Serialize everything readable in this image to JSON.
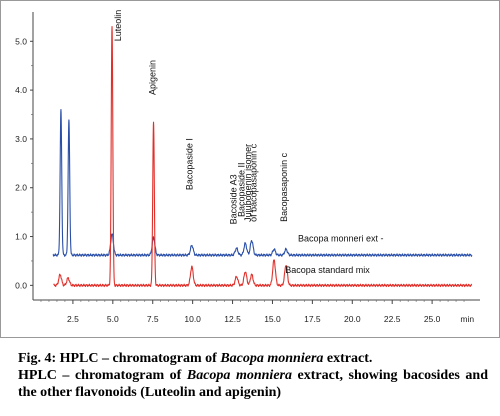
{
  "chart_data": {
    "type": "line",
    "x_unit": "min",
    "xlim": [
      0,
      28
    ],
    "ylim": [
      -0.3,
      5.6
    ],
    "x_ticks": [
      "2.5",
      "5.0",
      "7.5",
      "10.0",
      "12.5",
      "15.0",
      "17.5",
      "20.0",
      "22.5",
      "25.0",
      "min"
    ],
    "y_ticks": [
      "0.0",
      "1.0",
      "2.0",
      "3.0",
      "4.0",
      "5.0"
    ],
    "grid": false,
    "series": [
      {
        "name": "Bacopa monneri ext -",
        "color": "#2a4fa8",
        "baseline": 0.62,
        "peaks": [
          {
            "x": 1.75,
            "y": 3.58
          },
          {
            "x": 2.25,
            "y": 3.38
          },
          {
            "x": 4.95,
            "y": 1.05
          },
          {
            "x": 7.55,
            "y": 0.98
          },
          {
            "x": 9.95,
            "y": 0.82
          },
          {
            "x": 12.75,
            "y": 0.76
          },
          {
            "x": 13.3,
            "y": 0.86
          },
          {
            "x": 13.7,
            "y": 0.92
          },
          {
            "x": 15.1,
            "y": 0.74
          },
          {
            "x": 15.85,
            "y": 0.74
          }
        ]
      },
      {
        "name": "Bacopa standard mix",
        "color": "#e0302b",
        "baseline": 0.0,
        "peaks": [
          {
            "x": 1.7,
            "y": 0.22
          },
          {
            "x": 2.2,
            "y": 0.15
          },
          {
            "x": 4.95,
            "y": 5.32
          },
          {
            "x": 7.55,
            "y": 3.35
          },
          {
            "x": 9.95,
            "y": 0.38
          },
          {
            "x": 12.75,
            "y": 0.18
          },
          {
            "x": 13.3,
            "y": 0.28
          },
          {
            "x": 13.7,
            "y": 0.22
          },
          {
            "x": 15.1,
            "y": 0.52
          },
          {
            "x": 15.85,
            "y": 0.42
          }
        ]
      }
    ],
    "peak_labels": [
      {
        "text": "Luteolin",
        "x": 4.95
      },
      {
        "text": "Apigenin",
        "x": 7.55
      },
      {
        "text": "Bacopaside I",
        "x": 10.0
      },
      {
        "text": "Bacoside A3",
        "x": 12.75
      },
      {
        "text": "Bacopaside II",
        "x": 13.25
      },
      {
        "text": "Jujubogenin isomer",
        "x": 13.65
      },
      {
        "text": "of bacopasaponin c",
        "x": 14.0
      },
      {
        "text": "Bacopasaponin c",
        "x": 15.9
      }
    ]
  },
  "caption": {
    "fig_label": "Fig. 4:",
    "title_pre": " HPLC – chromatogram of ",
    "title_italic": "Bacopa monniera",
    "title_post": " extract.",
    "desc_pre": "HPLC – chromatogram of ",
    "desc_italic": "Bacopa monniera",
    "desc_post": " extract, showing bacosides and the other flavonoids (Luteolin and apigenin)"
  }
}
